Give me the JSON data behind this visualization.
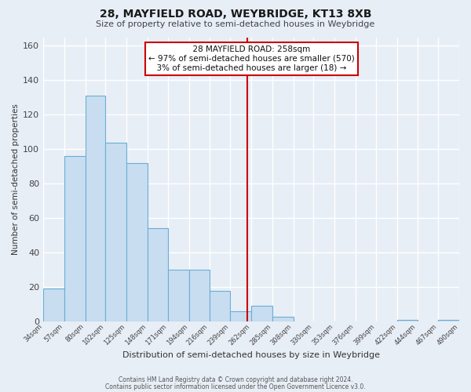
{
  "title": "28, MAYFIELD ROAD, WEYBRIDGE, KT13 8XB",
  "subtitle": "Size of property relative to semi-detached houses in Weybridge",
  "xlabel": "Distribution of semi-detached houses by size in Weybridge",
  "ylabel": "Number of semi-detached properties",
  "bar_color": "#c8ddf0",
  "bar_edge_color": "#6aaed6",
  "background_color": "#e8eef6",
  "grid_color": "#ffffff",
  "annotation_line_color": "#cc0000",
  "annotation_title": "28 MAYFIELD ROAD: 258sqm",
  "annotation_line1": "← 97% of semi-detached houses are smaller (570)",
  "annotation_line2": "3% of semi-detached houses are larger (18) →",
  "marker_value": 258,
  "ylim_max": 165,
  "bins": [
    34,
    57,
    80,
    102,
    125,
    148,
    171,
    194,
    216,
    239,
    262,
    285,
    308,
    330,
    353,
    376,
    399,
    422,
    444,
    467,
    490
  ],
  "counts": [
    19,
    96,
    131,
    104,
    92,
    54,
    30,
    30,
    18,
    6,
    9,
    3,
    0,
    0,
    0,
    0,
    0,
    1,
    0,
    1
  ],
  "yticks": [
    0,
    20,
    40,
    60,
    80,
    100,
    120,
    140,
    160
  ],
  "footnote1": "Contains HM Land Registry data © Crown copyright and database right 2024.",
  "footnote2": "Contains public sector information licensed under the Open Government Licence v3.0."
}
